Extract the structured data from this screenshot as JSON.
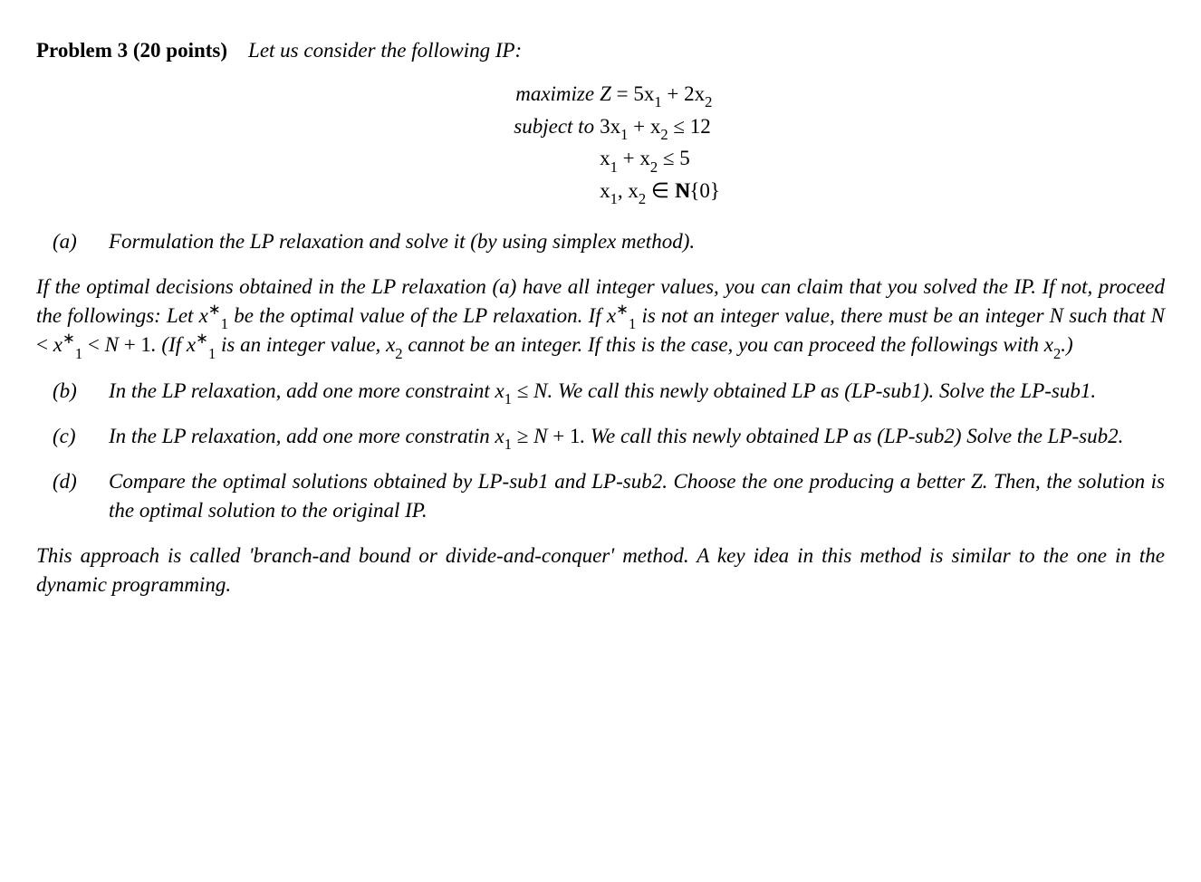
{
  "header": {
    "label": "Problem 3 (20 points)",
    "intro": "Let us consider the following IP:"
  },
  "equations": {
    "row1_left": "maximize ",
    "row1_right_pre": "Z",
    "row1_right": " = 5x",
    "row1_s1": "1",
    "row1_mid": " + 2x",
    "row1_s2": "2",
    "row2_left": "subject to ",
    "row2_right": "3x",
    "row2_s1": "1",
    "row2_mid": " + x",
    "row2_s2": "2",
    "row2_end": " ≤ 12",
    "row3_right": "x",
    "row3_s1": "1",
    "row3_mid": " + x",
    "row3_s2": "2",
    "row3_end": " ≤ 5",
    "row4_right": "x",
    "row4_s1": "1",
    "row4_mid": ", x",
    "row4_s2": "2",
    "row4_in": " ∈ ",
    "row4_N": "N",
    "row4_set": "{0}"
  },
  "parts": {
    "a_label": "(a)",
    "a_text": "Formulation the LP relaxation and solve it (by using simplex method).",
    "mid_p1": "If the optimal decisions obtained in the LP relaxation (a) have all integer values, you can claim that you solved the IP. If not, proceed the followings: Let ",
    "mid_x1star": "x",
    "mid_x1star_sub": "1",
    "mid_x1star_sup": "∗",
    "mid_p2": " be the optimal value of the LP relaxation. If ",
    "mid_p3": " is not an integer value, there must be an integer ",
    "mid_N": "N",
    "mid_p4": " such that ",
    "mid_rel1a": "N",
    "mid_rel1b": " < ",
    "mid_rel2": " < ",
    "mid_rel3a": "N",
    "mid_rel3b": " + 1",
    "mid_p5": ". (If ",
    "mid_p6": " is an integer value, ",
    "mid_x2": "x",
    "mid_x2_sub": "2",
    "mid_p7": " cannot be an integer. If this is the case, you can proceed the followings with ",
    "mid_p8": ".)",
    "b_label": "(b)",
    "b_t1": "In the LP relaxation, add one more constraint ",
    "b_x1": "x",
    "b_x1_sub": "1",
    "b_rel": " ≤ ",
    "b_N": "N",
    "b_t2": ". We call this newly obtained LP as (LP-sub1). Solve the LP-sub1.",
    "c_label": "(c)",
    "c_t1": "In the LP relaxation, add one more constratin ",
    "c_x1": "x",
    "c_x1_sub": "1",
    "c_rel": " ≥ ",
    "c_N": "N",
    "c_plus": " + 1",
    "c_t2": ". We call this newly obtained LP as (LP-sub2) Solve the LP-sub2.",
    "d_label": "(d)",
    "d_t1": "Compare the optimal solutions obtained by LP-sub1 and LP-sub2. Choose the one producing a better ",
    "d_Z": "Z",
    "d_t2": ". Then, the solution is the optimal solution to the original IP.",
    "closing": "This approach is called 'branch-and bound or divide-and-conquer' method. A key idea in this method is similar to the one in the dynamic programming."
  }
}
